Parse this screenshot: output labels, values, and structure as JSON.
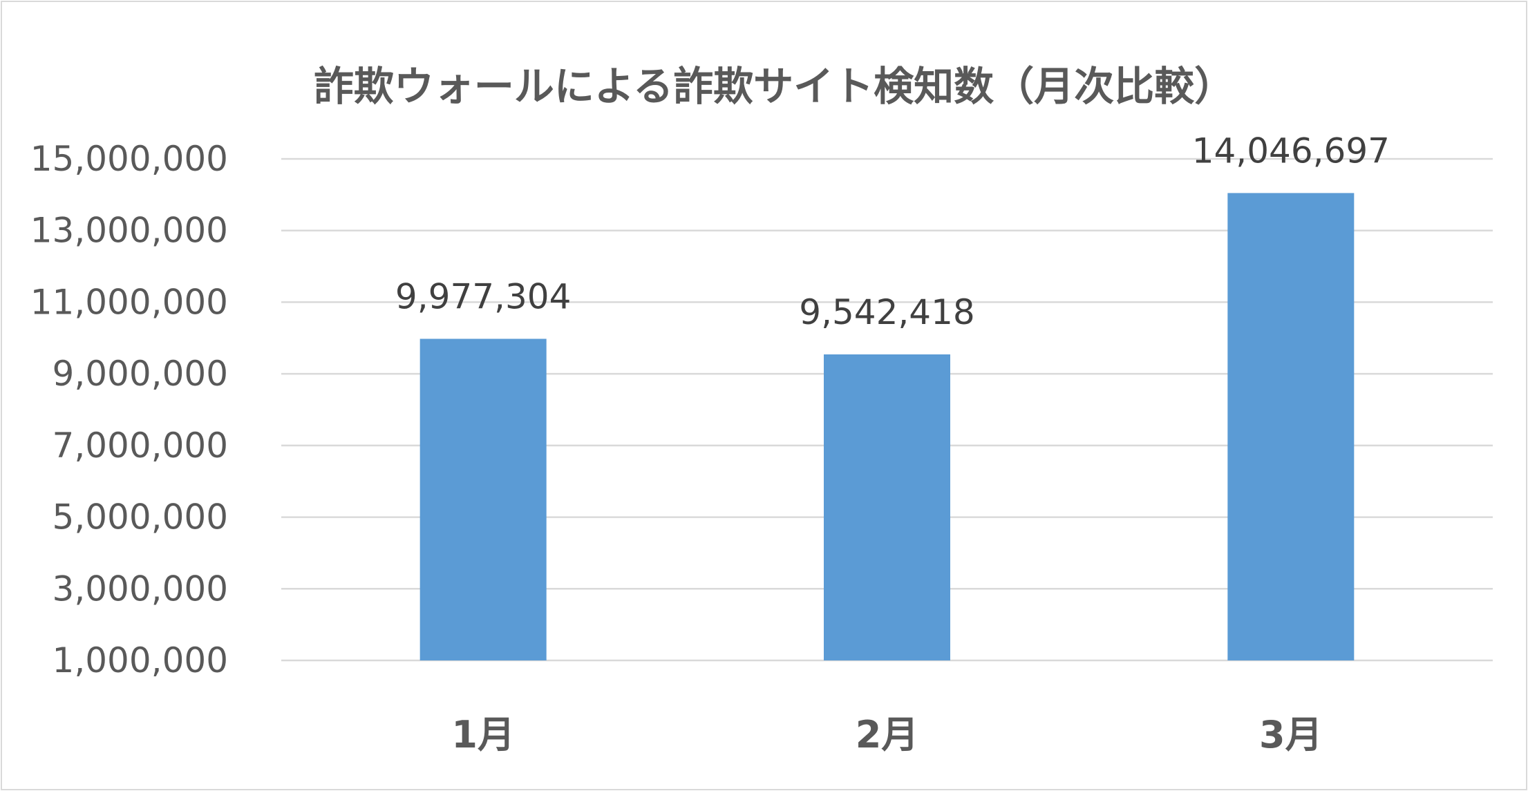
{
  "chart_data": {
    "type": "bar",
    "title": "詐欺ウォールによる詐欺サイト検知数（月次比較）",
    "categories": [
      "1月",
      "2月",
      "3月"
    ],
    "values": [
      9977304,
      9542418,
      14046697
    ],
    "value_labels": [
      "9,977,304",
      "9,542,418",
      "14,046,697"
    ],
    "ylim": [
      1000000,
      15000000
    ],
    "yticks": [
      1000000,
      3000000,
      5000000,
      7000000,
      9000000,
      11000000,
      13000000,
      15000000
    ],
    "ytick_labels": [
      "1,000,000",
      "3,000,000",
      "5,000,000",
      "7,000,000",
      "9,000,000",
      "11,000,000",
      "13,000,000",
      "15,000,000"
    ],
    "grid": true,
    "legend": "none",
    "bar_color": "#5b9bd5",
    "text_color": "#595959",
    "grid_color": "#d9d9d9"
  }
}
